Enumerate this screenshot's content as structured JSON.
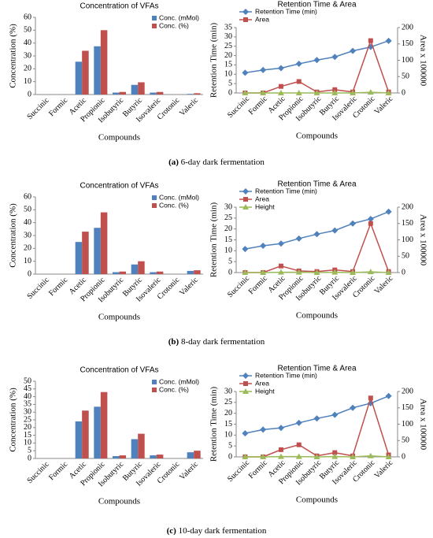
{
  "chart_data": [
    {
      "type": "bar",
      "title": "Concentration of VFAs",
      "y_label": "Concentration (%)",
      "x_label": "Compounds",
      "categories": [
        "Succinic",
        "Formic",
        "Acetic",
        "Propionic",
        "Isobutyric",
        "Butyric",
        "Isovaleric",
        "Crotonic",
        "Valeric"
      ],
      "series": [
        {
          "name": "Conc. (mMol)",
          "color": "#4f81bd",
          "values": [
            0,
            0,
            25.5,
            37.5,
            1.5,
            7.5,
            1.5,
            0,
            0.5
          ]
        },
        {
          "name": "Conc. (%)",
          "color": "#c0504d",
          "values": [
            0,
            0,
            34,
            50,
            2,
            9.5,
            2,
            0,
            1
          ]
        }
      ],
      "ylim": [
        0,
        60
      ],
      "yticks": [
        0,
        10,
        20,
        30,
        40,
        50,
        60
      ]
    },
    {
      "type": "line",
      "title": "Retention Time & Area",
      "y_label": "Retention Time (min)",
      "y2_label": "Area x 100000",
      "x_label": "Compounds",
      "categories": [
        "Succinic",
        "Formic",
        "Acetic",
        "Propionic",
        "Isobutyric",
        "Butyric",
        "Isovaleric",
        "Crotonic",
        "Valeric"
      ],
      "series": [
        {
          "name": "Retention Time (min)",
          "color": "#4f81bd",
          "marker": "diamond",
          "values": [
            10.8,
            12.3,
            13.3,
            15.6,
            17.6,
            19.3,
            22.5,
            24.6,
            27.9
          ]
        },
        {
          "name": "Area",
          "color": "#c0504d",
          "marker": "square",
          "axis": "y2",
          "values": [
            0,
            0,
            20,
            35,
            3,
            10,
            3,
            160,
            3
          ]
        },
        {
          "color": "#9bbb59",
          "marker": "triangle",
          "axis": "y2",
          "values": [
            0,
            0,
            0,
            0,
            0,
            0,
            0,
            2,
            0
          ]
        }
      ],
      "ylim": [
        0,
        35
      ],
      "yticks": [
        0,
        5,
        10,
        15,
        20,
        25,
        30,
        35
      ],
      "y2lim": [
        0,
        200
      ],
      "y2ticks": [
        0,
        50,
        100,
        150,
        200
      ]
    },
    {
      "type": "bar",
      "title": "Concentration of VFAs",
      "y_label": "Concentration (%)",
      "x_label": "Compounds",
      "categories": [
        "Succinic",
        "Formic",
        "Acetic",
        "Propionic",
        "Isobutyric",
        "Butyric",
        "Isovaleric",
        "Crotonic",
        "Valeric"
      ],
      "series": [
        {
          "name": "Conc. (mMol)",
          "color": "#4f81bd",
          "values": [
            0,
            0,
            25,
            36,
            1.5,
            7.5,
            1.5,
            0,
            2.5
          ]
        },
        {
          "name": "Conc. (%)",
          "color": "#c0504d",
          "values": [
            0,
            0,
            33,
            48,
            2,
            10,
            2,
            0,
            3
          ]
        }
      ],
      "ylim": [
        0,
        60
      ],
      "yticks": [
        0,
        10,
        20,
        30,
        40,
        50,
        60
      ]
    },
    {
      "type": "line",
      "title": "Retention Time & Area",
      "y_label": "Retention Time (min)",
      "y2_label": "Area x 100000",
      "x_label": "Compounds",
      "categories": [
        "Succinic",
        "Formic",
        "Acetic",
        "Propionic",
        "Isobutyric",
        "Butyric",
        "Isovaleric",
        "Crotonic",
        "Valeric"
      ],
      "series": [
        {
          "name": "Retention Time (min)",
          "color": "#4f81bd",
          "marker": "diamond",
          "values": [
            10.8,
            12.3,
            13.3,
            15.6,
            17.6,
            19.3,
            22.5,
            24.6,
            27.9
          ]
        },
        {
          "name": "Area",
          "color": "#c0504d",
          "marker": "square",
          "axis": "y2",
          "values": [
            0,
            0,
            20,
            5,
            3,
            8,
            3,
            150,
            3
          ]
        },
        {
          "name": "Height",
          "color": "#9bbb59",
          "marker": "triangle",
          "axis": "y2",
          "values": [
            0,
            0,
            1,
            1,
            0,
            1,
            0,
            2,
            0
          ]
        }
      ],
      "ylim": [
        0,
        30
      ],
      "yticks": [
        0,
        5,
        10,
        15,
        20,
        25,
        30
      ],
      "y2lim": [
        0,
        200
      ],
      "y2ticks": [
        0,
        50,
        100,
        150,
        200
      ]
    },
    {
      "type": "bar",
      "title": "Concentration of VFAs",
      "y_label": "Concentration (%)",
      "x_label": "Compounds",
      "categories": [
        "Succinic",
        "Formic",
        "Acetic",
        "Propionic",
        "Isobutyric",
        "Butyric",
        "Isovaleric",
        "Crotonic",
        "Valeric"
      ],
      "series": [
        {
          "name": "Conc. (mMol)",
          "color": "#4f81bd",
          "values": [
            0,
            0,
            24,
            33.5,
            1.5,
            12.5,
            2,
            0,
            4
          ]
        },
        {
          "name": "Conc. (%)",
          "color": "#c0504d",
          "values": [
            0,
            0,
            31,
            43,
            2,
            16,
            2.5,
            0,
            5
          ]
        }
      ],
      "ylim": [
        0,
        50
      ],
      "yticks": [
        0,
        5,
        10,
        15,
        20,
        25,
        30,
        35,
        40,
        45,
        50
      ]
    },
    {
      "type": "line",
      "title": "Retention Time & Area",
      "y_label": "Retention Time (min)",
      "y2_label": "Area x 100000",
      "x_label": "Compounds",
      "categories": [
        "Succinic",
        "Formic",
        "Acetic",
        "Propionic",
        "Isobutyric",
        "Butyric",
        "Isovaleric",
        "Crotonic",
        "Valeric"
      ],
      "series": [
        {
          "name": "Retention Time (min)",
          "color": "#4f81bd",
          "marker": "diamond",
          "values": [
            10.8,
            12.5,
            13.3,
            15.6,
            17.6,
            19.3,
            22.5,
            24.6,
            27.9
          ]
        },
        {
          "name": "Area",
          "color": "#c0504d",
          "marker": "square",
          "axis": "y2",
          "values": [
            0,
            0,
            22,
            37,
            3,
            13,
            3,
            180,
            6
          ]
        },
        {
          "name": "Height",
          "color": "#9bbb59",
          "marker": "triangle",
          "axis": "y2",
          "values": [
            0,
            0,
            1,
            1,
            0,
            1,
            0,
            3,
            0
          ]
        }
      ],
      "ylim": [
        0,
        30
      ],
      "yticks": [
        0,
        5,
        10,
        15,
        20,
        25,
        30
      ],
      "y2lim": [
        0,
        200
      ],
      "y2ticks": [
        0,
        50,
        100,
        150,
        200
      ]
    }
  ],
  "captions": [
    {
      "label": "(a)",
      "text": "6-day dark fermentation"
    },
    {
      "label": "(b)",
      "text": "8-day dark fermentation"
    },
    {
      "label": "(c)",
      "text": "10-day dark fermentation"
    }
  ]
}
